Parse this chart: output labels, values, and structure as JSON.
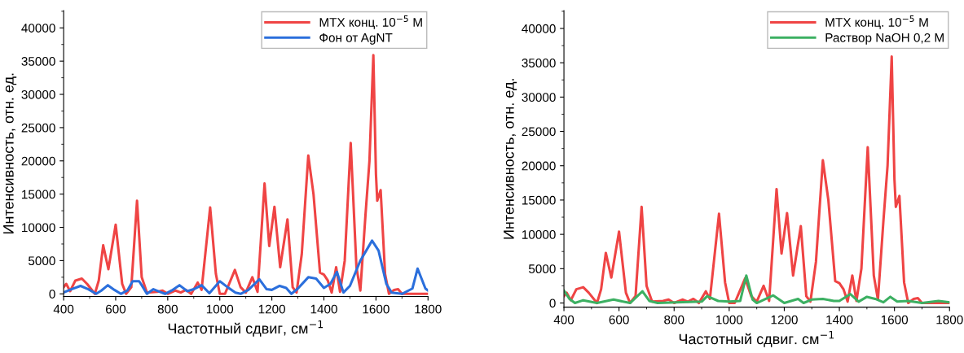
{
  "chart_data": [
    {
      "type": "line",
      "xlabel": "Частотный сдвиг, см$^{−1}$",
      "ylabel": "Интенсивность, отн. ед.",
      "xlim": [
        400,
        1800
      ],
      "ylim": [
        -400,
        42600
      ],
      "xticks": [
        400,
        600,
        800,
        1000,
        1200,
        1400,
        1600,
        1800
      ],
      "yticks": [
        0,
        5000,
        10000,
        15000,
        20000,
        25000,
        30000,
        35000,
        40000
      ],
      "legend": "top right",
      "series": [
        {
          "name": "MTX конц. 10$^{−5}$ M",
          "color": "#ef4444",
          "x": [
            400,
            410,
            425,
            445,
            470,
            490,
            520,
            535,
            552,
            572,
            600,
            625,
            640,
            660,
            682,
            700,
            720,
            760,
            780,
            800,
            830,
            850,
            870,
            890,
            915,
            930,
            963,
            985,
            1000,
            1020,
            1058,
            1080,
            1100,
            1125,
            1145,
            1172,
            1190,
            1210,
            1232,
            1260,
            1280,
            1295,
            1315,
            1340,
            1360,
            1385,
            1400,
            1415,
            1430,
            1447,
            1462,
            1480,
            1503,
            1525,
            1540,
            1560,
            1575,
            1590,
            1600,
            1605,
            1618,
            1635,
            1650,
            1670,
            1685,
            1700,
            1800
          ],
          "values": [
            1000,
            1500,
            400,
            2000,
            2300,
            1500,
            0,
            2000,
            7300,
            3700,
            10400,
            1500,
            0,
            1000,
            14000,
            2500,
            200,
            300,
            500,
            0,
            500,
            200,
            600,
            0,
            1700,
            600,
            13000,
            3000,
            0,
            0,
            3600,
            1000,
            200,
            2500,
            300,
            16600,
            7200,
            13100,
            4000,
            11200,
            1000,
            200,
            6000,
            20800,
            15000,
            3200,
            2900,
            2000,
            200,
            4000,
            300,
            5000,
            22700,
            4000,
            500,
            12000,
            20000,
            35900,
            18000,
            14000,
            15600,
            3000,
            0,
            600,
            700,
            0,
            0
          ]
        },
        {
          "name": "Фон от AgNT",
          "color": "#2b6fdc",
          "x": [
            400,
            430,
            465,
            495,
            525,
            545,
            570,
            595,
            620,
            645,
            665,
            690,
            700,
            720,
            745,
            770,
            790,
            815,
            845,
            875,
            900,
            930,
            960,
            1000,
            1030,
            1060,
            1080,
            1110,
            1152,
            1180,
            1200,
            1230,
            1255,
            1275,
            1300,
            1340,
            1370,
            1400,
            1425,
            1450,
            1475,
            1500,
            1540,
            1585,
            1610,
            1640,
            1660,
            1700,
            1740,
            1760,
            1790,
            1800
          ],
          "values": [
            200,
            700,
            1200,
            700,
            0,
            500,
            1300,
            600,
            0,
            500,
            1900,
            1900,
            1300,
            0,
            700,
            300,
            0,
            500,
            1300,
            400,
            700,
            1300,
            100,
            1900,
            1000,
            200,
            0,
            600,
            2200,
            700,
            600,
            1200,
            900,
            0,
            800,
            2500,
            2300,
            900,
            1500,
            3300,
            200,
            1200,
            5000,
            8000,
            6500,
            1500,
            200,
            0,
            800,
            3800,
            800,
            500
          ]
        }
      ]
    },
    {
      "type": "line",
      "xlabel": "Частотный сдвиг. см$^{−1}$",
      "ylabel": "Интенсивность, отн. ед.",
      "xlim": [
        400,
        1800
      ],
      "ylim": [
        -600,
        42600
      ],
      "xticks": [
        400,
        600,
        800,
        1000,
        1200,
        1400,
        1600,
        1800
      ],
      "yticks": [
        0,
        5000,
        10000,
        15000,
        20000,
        25000,
        30000,
        35000,
        40000
      ],
      "legend": "top right",
      "series": [
        {
          "name": "MTX конц. 10$^{−5}$ M",
          "color": "#ef4444",
          "x": [
            400,
            410,
            425,
            445,
            470,
            490,
            520,
            535,
            552,
            572,
            600,
            625,
            640,
            660,
            682,
            700,
            720,
            760,
            780,
            800,
            830,
            850,
            870,
            890,
            915,
            930,
            963,
            985,
            1000,
            1020,
            1058,
            1080,
            1100,
            1125,
            1145,
            1172,
            1190,
            1210,
            1232,
            1260,
            1280,
            1295,
            1315,
            1340,
            1360,
            1385,
            1400,
            1415,
            1430,
            1447,
            1462,
            1480,
            1503,
            1525,
            1540,
            1560,
            1575,
            1590,
            1600,
            1605,
            1618,
            1635,
            1650,
            1670,
            1685,
            1700,
            1800
          ],
          "values": [
            1000,
            1500,
            400,
            2000,
            2300,
            1500,
            0,
            2000,
            7300,
            3700,
            10400,
            1500,
            0,
            1000,
            14000,
            2500,
            200,
            300,
            500,
            0,
            500,
            200,
            600,
            0,
            1700,
            600,
            13000,
            3000,
            0,
            0,
            3600,
            1000,
            200,
            2500,
            300,
            16600,
            7200,
            13100,
            4000,
            11200,
            1000,
            200,
            6000,
            20800,
            15000,
            3200,
            2900,
            2000,
            200,
            4000,
            300,
            5000,
            22700,
            4000,
            500,
            12000,
            20000,
            35900,
            18000,
            14000,
            15600,
            3000,
            0,
            600,
            700,
            0,
            0
          ]
        },
        {
          "name": "Раствор NaOH 0,2 M",
          "color": "#3cb062",
          "x": [
            400,
            420,
            440,
            470,
            520,
            580,
            640,
            685,
            710,
            740,
            900,
            920,
            960,
            1000,
            1040,
            1062,
            1085,
            1100,
            1160,
            1200,
            1250,
            1270,
            1300,
            1340,
            1380,
            1400,
            1440,
            1470,
            1500,
            1530,
            1560,
            1585,
            1610,
            1650,
            1700,
            1760,
            1800
          ],
          "values": [
            1800,
            600,
            0,
            400,
            0,
            500,
            0,
            1700,
            300,
            0,
            200,
            1000,
            300,
            200,
            300,
            4000,
            500,
            0,
            1100,
            0,
            600,
            0,
            500,
            600,
            300,
            300,
            1300,
            200,
            900,
            600,
            100,
            900,
            200,
            300,
            0,
            300,
            100
          ]
        }
      ]
    }
  ]
}
